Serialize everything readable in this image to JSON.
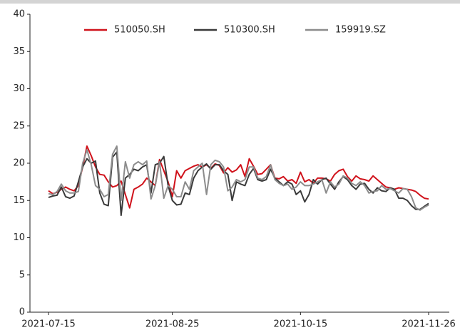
{
  "chart_data": {
    "type": "line",
    "categories": [
      "2021-07-15",
      null,
      null,
      null,
      null,
      null,
      null,
      null,
      null,
      null,
      null,
      null,
      null,
      null,
      null,
      null,
      null,
      null,
      null,
      null,
      null,
      null,
      null,
      null,
      null,
      null,
      null,
      null,
      null,
      "2021-08-25",
      null,
      null,
      null,
      null,
      null,
      null,
      null,
      null,
      null,
      null,
      null,
      null,
      null,
      null,
      null,
      null,
      null,
      null,
      null,
      null,
      null,
      null,
      null,
      null,
      null,
      null,
      null,
      null,
      null,
      "2021-10-15",
      null,
      null,
      null,
      null,
      null,
      null,
      null,
      null,
      null,
      null,
      null,
      null,
      null,
      null,
      null,
      null,
      null,
      null,
      null,
      null,
      null,
      null,
      null,
      null,
      null,
      null,
      null,
      null,
      null,
      "2021-11-26"
    ],
    "series": [
      {
        "name": "510050.SH",
        "color": "#d0121b",
        "values": [
          16.3,
          15.9,
          16.1,
          16.5,
          16.8,
          16.5,
          16.3,
          17.0,
          19.5,
          22.3,
          21.0,
          19.5,
          18.5,
          18.4,
          17.5,
          16.8,
          17.0,
          17.6,
          15.8,
          14.0,
          16.5,
          16.8,
          17.2,
          18.0,
          17.5,
          17.0,
          20.5,
          19.0,
          17.5,
          15.5,
          19.0,
          18.0,
          19.0,
          19.3,
          19.6,
          19.8,
          19.5,
          19.8,
          19.3,
          19.9,
          19.7,
          18.7,
          19.4,
          18.8,
          19.1,
          19.8,
          18.2,
          20.6,
          19.6,
          18.5,
          18.6,
          19.2,
          19.8,
          18.0,
          17.9,
          18.2,
          17.6,
          17.8,
          17.3,
          18.8,
          17.5,
          17.8,
          17.3,
          18.0,
          18.0,
          17.9,
          17.6,
          18.5,
          19.0,
          19.2,
          18.2,
          17.6,
          18.3,
          17.9,
          17.8,
          17.6,
          18.3,
          17.8,
          17.3,
          16.8,
          16.7,
          16.5,
          16.7,
          16.6,
          16.5,
          16.4,
          16.2,
          15.7,
          15.3,
          15.2
        ]
      },
      {
        "name": "510300.SH",
        "color": "#3a3a3a",
        "values": [
          15.4,
          15.6,
          15.7,
          16.8,
          15.5,
          15.3,
          15.6,
          17.5,
          19.5,
          20.6,
          20.0,
          20.3,
          16.0,
          14.5,
          14.3,
          20.8,
          21.5,
          13.0,
          18.0,
          18.5,
          19.2,
          19.0,
          19.5,
          19.8,
          16.0,
          19.8,
          20.0,
          20.9,
          17.0,
          15.0,
          14.4,
          14.5,
          16.0,
          15.8,
          18.0,
          19.0,
          19.5,
          19.9,
          19.2,
          19.8,
          19.8,
          19.0,
          18.5,
          15.0,
          17.5,
          17.2,
          17.0,
          18.5,
          19.3,
          17.8,
          17.6,
          17.8,
          19.2,
          18.0,
          17.5,
          17.0,
          17.5,
          17.2,
          15.8,
          16.3,
          14.8,
          15.8,
          17.8,
          17.2,
          17.8,
          18.0,
          17.2,
          16.5,
          17.5,
          18.2,
          17.8,
          17.0,
          16.5,
          17.2,
          17.3,
          16.5,
          16.0,
          16.7,
          16.3,
          16.2,
          16.7,
          16.5,
          15.3,
          15.3,
          15.0,
          14.3,
          13.8,
          13.8,
          14.2,
          14.6
        ]
      },
      {
        "name": "159919.SZ",
        "color": "#8c8c8c",
        "values": [
          15.9,
          15.8,
          16.2,
          17.2,
          16.3,
          16.0,
          16.0,
          16.2,
          20.0,
          21.8,
          19.8,
          17.0,
          16.5,
          15.5,
          15.8,
          21.2,
          22.3,
          15.0,
          20.2,
          18.0,
          19.8,
          20.2,
          19.8,
          20.3,
          15.2,
          17.0,
          20.2,
          15.3,
          17.0,
          16.5,
          15.5,
          15.5,
          17.5,
          16.5,
          19.0,
          19.5,
          20.0,
          15.8,
          19.8,
          20.4,
          20.2,
          19.5,
          16.3,
          16.8,
          17.8,
          17.5,
          17.8,
          19.5,
          19.5,
          18.0,
          17.8,
          18.2,
          19.8,
          17.8,
          17.3,
          17.0,
          17.2,
          16.5,
          16.8,
          17.5,
          17.0,
          17.0,
          17.2,
          17.5,
          17.8,
          16.0,
          17.5,
          16.8,
          17.2,
          18.3,
          18.0,
          17.3,
          17.0,
          17.5,
          17.0,
          16.0,
          16.2,
          16.3,
          17.0,
          16.5,
          16.6,
          16.3,
          16.0,
          16.6,
          16.5,
          15.5,
          14.0,
          13.7,
          14.1,
          14.4
        ]
      }
    ],
    "ylim": [
      0,
      40
    ],
    "yticks": [
      0,
      5,
      10,
      15,
      20,
      25,
      30,
      35,
      40
    ],
    "grid": false,
    "legend": "top"
  }
}
